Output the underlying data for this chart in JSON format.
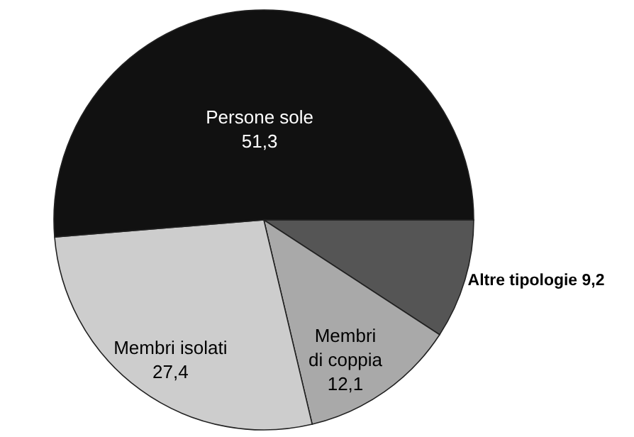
{
  "chart_data": {
    "type": "pie",
    "categories": [
      "Altre tipologie",
      "Membri di coppia",
      "Membri isolati",
      "Persone sole"
    ],
    "values": [
      9.2,
      12.1,
      27.4,
      51.3
    ],
    "value_labels": [
      "9,2",
      "12,1",
      "27,4",
      "51,3"
    ],
    "colors": [
      "#555555",
      "#a9a9a9",
      "#cdcdcd",
      "#111111"
    ]
  }
}
